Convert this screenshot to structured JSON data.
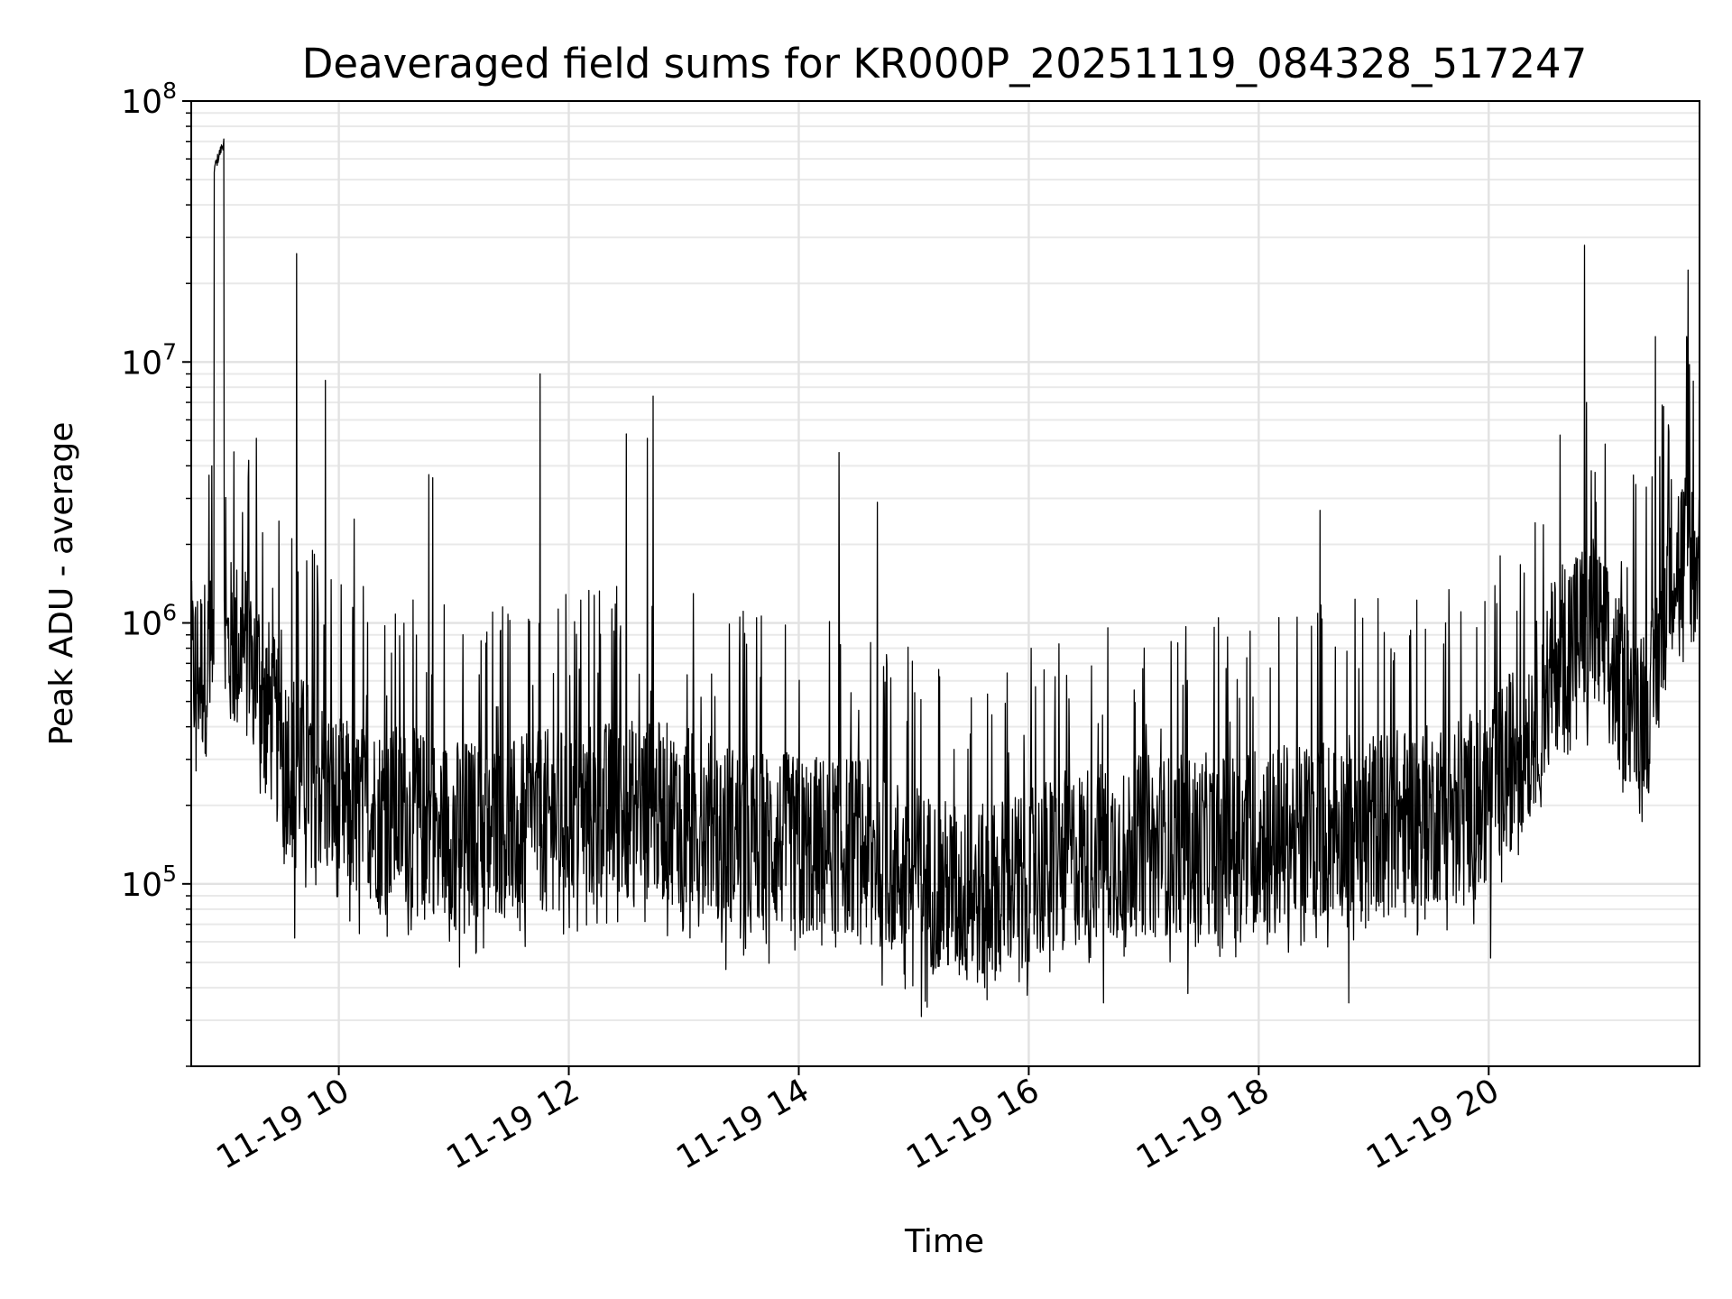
{
  "chart_data": {
    "type": "line",
    "title": "Deaveraged field sums for KR000P_20251119_084328_517247",
    "xlabel": "Time",
    "ylabel": "Peak ADU - average",
    "xlim": [
      "2025-11-19 08:43",
      "2025-11-19 21:50"
    ],
    "ylim": [
      20000,
      100000000
    ],
    "yscale": "log",
    "grid": true,
    "legend": "none",
    "x_ticks": [
      {
        "t": "2025-11-19 10:00",
        "label": "11-19 10"
      },
      {
        "t": "2025-11-19 12:00",
        "label": "11-19 12"
      },
      {
        "t": "2025-11-19 14:00",
        "label": "11-19 14"
      },
      {
        "t": "2025-11-19 16:00",
        "label": "11-19 16"
      },
      {
        "t": "2025-11-19 18:00",
        "label": "11-19 18"
      },
      {
        "t": "2025-11-19 20:00",
        "label": "11-19 20"
      }
    ],
    "y_ticks": [
      {
        "value": 100000,
        "base": "10",
        "exp": "5"
      },
      {
        "value": 1000000,
        "base": "10",
        "exp": "6"
      },
      {
        "value": 10000000,
        "base": "10",
        "exp": "7"
      },
      {
        "value": 100000000,
        "base": "10",
        "exp": "8"
      }
    ],
    "series": [
      {
        "color": "#000000",
        "baseline": [
          [
            "2025-11-19 08:43",
            600000
          ],
          [
            "2025-11-19 08:55",
            650000
          ],
          [
            "2025-11-19 09:05",
            750000
          ],
          [
            "2025-11-19 09:15",
            700000
          ],
          [
            "2025-11-19 09:30",
            300000
          ],
          [
            "2025-11-19 09:45",
            250000
          ],
          [
            "2025-11-19 10:00",
            180000
          ],
          [
            "2025-11-19 10:30",
            170000
          ],
          [
            "2025-11-19 11:00",
            150000
          ],
          [
            "2025-11-19 11:30",
            150000
          ],
          [
            "2025-11-19 12:00",
            170000
          ],
          [
            "2025-11-19 12:30",
            180000
          ],
          [
            "2025-11-19 13:00",
            170000
          ],
          [
            "2025-11-19 13:30",
            140000
          ],
          [
            "2025-11-19 14:00",
            130000
          ],
          [
            "2025-11-19 14:30",
            130000
          ],
          [
            "2025-11-19 15:00",
            100000
          ],
          [
            "2025-11-19 15:30",
            80000
          ],
          [
            "2025-11-19 16:00",
            100000
          ],
          [
            "2025-11-19 16:30",
            120000
          ],
          [
            "2025-11-19 17:00",
            130000
          ],
          [
            "2025-11-19 17:30",
            130000
          ],
          [
            "2025-11-19 18:00",
            140000
          ],
          [
            "2025-11-19 18:30",
            150000
          ],
          [
            "2025-11-19 19:00",
            160000
          ],
          [
            "2025-11-19 19:30",
            170000
          ],
          [
            "2025-11-19 20:00",
            200000
          ],
          [
            "2025-11-19 20:20",
            350000
          ],
          [
            "2025-11-19 20:40",
            800000
          ],
          [
            "2025-11-19 20:55",
            900000
          ],
          [
            "2025-11-19 21:10",
            500000
          ],
          [
            "2025-11-19 21:25",
            450000
          ],
          [
            "2025-11-19 21:35",
            1600000
          ],
          [
            "2025-11-19 21:50",
            1700000
          ]
        ],
        "plateau": [
          [
            "2025-11-19 08:55",
            55000000
          ],
          [
            "2025-11-19 08:57",
            62000000
          ],
          [
            "2025-11-19 08:59",
            68000000
          ],
          [
            "2025-11-19 09:00",
            70000000
          ]
        ],
        "spikes": [
          [
            "2025-11-19 09:13",
            4200000
          ],
          [
            "2025-11-19 09:17",
            5100000
          ],
          [
            "2025-11-19 09:38",
            26000000
          ],
          [
            "2025-11-19 09:53",
            8500000
          ],
          [
            "2025-11-19 10:08",
            2500000
          ],
          [
            "2025-11-19 10:47",
            3700000
          ],
          [
            "2025-11-19 10:49",
            3600000
          ],
          [
            "2025-11-19 11:45",
            9000000
          ],
          [
            "2025-11-19 12:30",
            5300000
          ],
          [
            "2025-11-19 12:41",
            5100000
          ],
          [
            "2025-11-19 12:44",
            7400000
          ],
          [
            "2025-11-19 14:21",
            4500000
          ],
          [
            "2025-11-19 14:41",
            2900000
          ],
          [
            "2025-11-19 18:32",
            2700000
          ],
          [
            "2025-11-19 20:50",
            28000000
          ],
          [
            "2025-11-19 20:51",
            7000000
          ],
          [
            "2025-11-19 20:56",
            2900000
          ],
          [
            "2025-11-19 21:27",
            12500000
          ],
          [
            "2025-11-19 21:34",
            5400000
          ],
          [
            "2025-11-19 21:44",
            22500000
          ]
        ],
        "dips": [
          [
            "2025-11-19 09:37",
            62000
          ],
          [
            "2025-11-19 11:03",
            48000
          ],
          [
            "2025-11-19 13:22",
            47000
          ],
          [
            "2025-11-19 15:04",
            31000
          ],
          [
            "2025-11-19 15:37",
            40000
          ],
          [
            "2025-11-19 16:39",
            35000
          ],
          [
            "2025-11-19 17:23",
            38000
          ],
          [
            "2025-11-19 18:47",
            35000
          ],
          [
            "2025-11-19 20:01",
            52000
          ]
        ]
      }
    ]
  }
}
